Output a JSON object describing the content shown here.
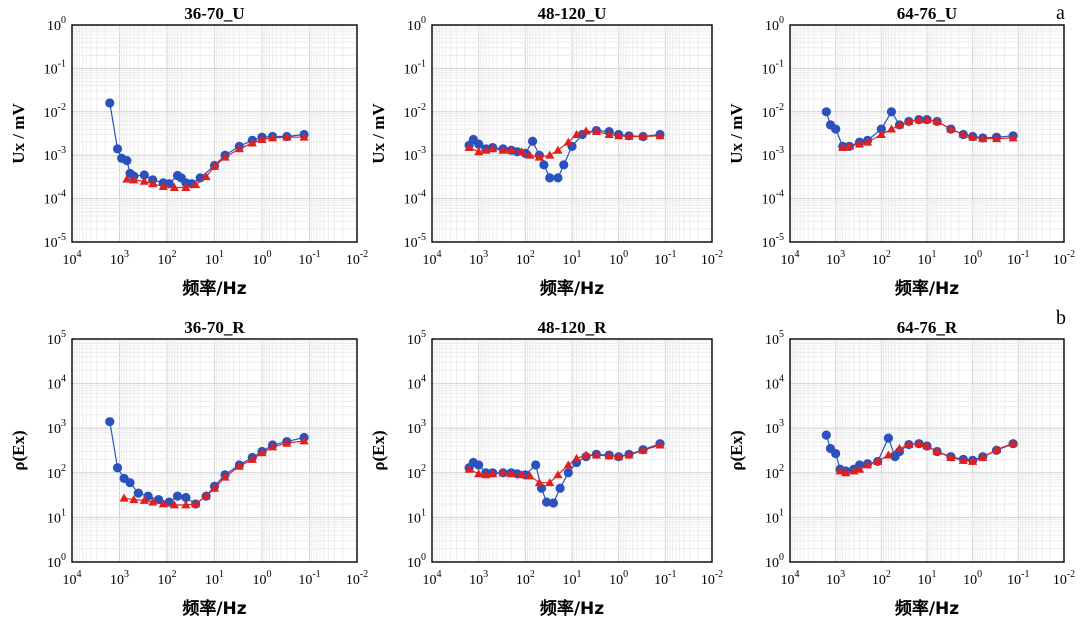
{
  "panel_labels": [
    "a",
    "b"
  ],
  "chart_data": [
    {
      "type": "line",
      "title": "36-70_U",
      "xlabel": "频率/Hz",
      "ylabel": "Ux / mV",
      "x_scale": "log",
      "x_reversed": true,
      "xlim": [
        10000,
        0.01
      ],
      "y_scale": "log",
      "ylim": [
        1e-05,
        1
      ],
      "x_ticks": [
        "10^4",
        "10^3",
        "10^2",
        "10^1",
        "10^0",
        "10^-1",
        "10^-2"
      ],
      "y_ticks": [
        "10^-5",
        "10^-4",
        "10^-3",
        "10^-2",
        "10^-1",
        "10^0"
      ],
      "grid": true,
      "series": [
        {
          "color": "#2a52be",
          "marker": "circle",
          "x": [
            1600,
            1100,
            900,
            700,
            600,
            500,
            300,
            200,
            120,
            90,
            60,
            50,
            40,
            30,
            20,
            10,
            6,
            3,
            1.6,
            1,
            0.6,
            0.3,
            0.13
          ],
          "y": [
            0.016,
            0.0014,
            0.00085,
            0.00075,
            0.00038,
            0.00033,
            0.00035,
            0.00027,
            0.00023,
            0.00022,
            0.00034,
            0.0003,
            0.00023,
            0.00022,
            0.0003,
            0.00058,
            0.001,
            0.0016,
            0.0022,
            0.0026,
            0.0027,
            0.0027,
            0.003
          ]
        },
        {
          "color": "#e0201e",
          "marker": "triangle",
          "x": [
            700,
            500,
            300,
            200,
            120,
            70,
            40,
            25,
            15,
            10,
            6,
            3,
            1.6,
            1,
            0.6,
            0.3,
            0.13
          ],
          "y": [
            0.00028,
            0.00027,
            0.00025,
            0.00022,
            0.00019,
            0.00018,
            0.00018,
            0.00021,
            0.00032,
            0.00055,
            0.0009,
            0.0014,
            0.0019,
            0.0023,
            0.0025,
            0.0026,
            0.0026
          ]
        }
      ]
    },
    {
      "type": "line",
      "title": "48-120_U",
      "xlabel": "频率/Hz",
      "ylabel": "Ux / mV",
      "x_scale": "log",
      "x_reversed": true,
      "xlim": [
        10000,
        0.01
      ],
      "y_scale": "log",
      "ylim": [
        1e-05,
        1
      ],
      "x_ticks": [
        "10^4",
        "10^3",
        "10^2",
        "10^1",
        "10^0",
        "10^-1",
        "10^-2"
      ],
      "y_ticks": [
        "10^-5",
        "10^-4",
        "10^-3",
        "10^-2",
        "10^-1",
        "10^0"
      ],
      "grid": true,
      "series": [
        {
          "color": "#2a52be",
          "marker": "circle",
          "x": [
            1600,
            1300,
            1000,
            700,
            500,
            300,
            200,
            150,
            100,
            70,
            50,
            40,
            30,
            20,
            15,
            10,
            6,
            3,
            1.6,
            1,
            0.6,
            0.3,
            0.13
          ],
          "y": [
            0.0017,
            0.0023,
            0.0018,
            0.0014,
            0.0015,
            0.0014,
            0.0013,
            0.0012,
            0.0011,
            0.0021,
            0.001,
            0.0006,
            0.0003,
            0.0003,
            0.0006,
            0.0016,
            0.003,
            0.0037,
            0.0035,
            0.003,
            0.0028,
            0.0027,
            0.003
          ]
        },
        {
          "color": "#e0201e",
          "marker": "triangle",
          "x": [
            1600,
            1000,
            700,
            500,
            300,
            200,
            120,
            80,
            50,
            30,
            20,
            12,
            8,
            5,
            3,
            1.6,
            1,
            0.6,
            0.3,
            0.13
          ],
          "y": [
            0.0015,
            0.0012,
            0.0013,
            0.0014,
            0.0013,
            0.0013,
            0.0012,
            0.001,
            0.0009,
            0.001,
            0.0013,
            0.002,
            0.003,
            0.0036,
            0.0035,
            0.003,
            0.0028,
            0.0027,
            0.0027,
            0.0028
          ]
        }
      ]
    },
    {
      "type": "line",
      "title": "64-76_U",
      "xlabel": "频率/Hz",
      "ylabel": "Ux / mV",
      "x_scale": "log",
      "x_reversed": true,
      "xlim": [
        10000,
        0.01
      ],
      "y_scale": "log",
      "ylim": [
        1e-05,
        1
      ],
      "x_ticks": [
        "10^4",
        "10^3",
        "10^2",
        "10^1",
        "10^0",
        "10^-1",
        "10^-2"
      ],
      "y_ticks": [
        "10^-5",
        "10^-4",
        "10^-3",
        "10^-2",
        "10^-1",
        "10^0"
      ],
      "grid": true,
      "series": [
        {
          "color": "#2a52be",
          "marker": "circle",
          "x": [
            1600,
            1300,
            1000,
            700,
            500,
            300,
            200,
            100,
            60,
            40,
            25,
            15,
            10,
            6,
            3,
            1.6,
            1,
            0.6,
            0.3,
            0.13
          ],
          "y": [
            0.01,
            0.005,
            0.004,
            0.0016,
            0.0016,
            0.002,
            0.0022,
            0.004,
            0.01,
            0.005,
            0.006,
            0.0066,
            0.0066,
            0.006,
            0.004,
            0.003,
            0.0027,
            0.0025,
            0.0026,
            0.0028
          ]
        },
        {
          "color": "#e0201e",
          "marker": "triangle",
          "x": [
            700,
            500,
            300,
            200,
            100,
            60,
            40,
            25,
            15,
            10,
            6,
            3,
            1.6,
            1,
            0.6,
            0.3,
            0.13
          ],
          "y": [
            0.0015,
            0.0016,
            0.0018,
            0.002,
            0.003,
            0.004,
            0.005,
            0.006,
            0.0066,
            0.0066,
            0.006,
            0.004,
            0.003,
            0.0026,
            0.0024,
            0.0024,
            0.0025
          ]
        }
      ]
    },
    {
      "type": "line",
      "title": "36-70_R",
      "xlabel": "频率/Hz",
      "ylabel": "ρ(Ex)",
      "x_scale": "log",
      "x_reversed": true,
      "xlim": [
        10000,
        0.01
      ],
      "y_scale": "log",
      "ylim": [
        1,
        100000
      ],
      "x_ticks": [
        "10^4",
        "10^3",
        "10^2",
        "10^1",
        "10^0",
        "10^-1",
        "10^-2"
      ],
      "y_ticks": [
        "10^0",
        "10^1",
        "10^2",
        "10^3",
        "10^4",
        "10^5"
      ],
      "grid": true,
      "series": [
        {
          "color": "#2a52be",
          "marker": "circle",
          "x": [
            1600,
            1100,
            800,
            600,
            400,
            250,
            150,
            90,
            60,
            40,
            25,
            15,
            10,
            6,
            3,
            1.6,
            1,
            0.6,
            0.3,
            0.13
          ],
          "y": [
            1400,
            130,
            75,
            60,
            35,
            30,
            25,
            22,
            30,
            28,
            20,
            30,
            50,
            90,
            150,
            220,
            300,
            420,
            500,
            620
          ]
        },
        {
          "color": "#e0201e",
          "marker": "triangle",
          "x": [
            800,
            500,
            300,
            200,
            120,
            70,
            40,
            25,
            15,
            10,
            6,
            3,
            1.6,
            1,
            0.6,
            0.3,
            0.13
          ],
          "y": [
            27,
            25,
            24,
            22,
            20,
            19,
            19,
            20,
            30,
            45,
            80,
            140,
            200,
            280,
            380,
            460,
            520
          ]
        }
      ]
    },
    {
      "type": "line",
      "title": "48-120_R",
      "xlabel": "频率/Hz",
      "ylabel": "ρ(Ex)",
      "x_scale": "log",
      "x_reversed": true,
      "xlim": [
        10000,
        0.01
      ],
      "y_scale": "log",
      "ylim": [
        1,
        100000
      ],
      "x_ticks": [
        "10^4",
        "10^3",
        "10^2",
        "10^1",
        "10^0",
        "10^-1",
        "10^-2"
      ],
      "y_ticks": [
        "10^0",
        "10^1",
        "10^2",
        "10^3",
        "10^4",
        "10^5"
      ],
      "grid": true,
      "series": [
        {
          "color": "#2a52be",
          "marker": "circle",
          "x": [
            1600,
            1300,
            1000,
            700,
            500,
            300,
            200,
            150,
            100,
            60,
            45,
            35,
            25,
            18,
            12,
            8,
            5,
            3,
            1.6,
            1,
            0.6,
            0.3,
            0.13
          ],
          "y": [
            130,
            170,
            150,
            100,
            100,
            100,
            100,
            95,
            90,
            150,
            45,
            22,
            21,
            45,
            100,
            170,
            230,
            260,
            250,
            230,
            260,
            330,
            450
          ]
        },
        {
          "color": "#e0201e",
          "marker": "triangle",
          "x": [
            1600,
            1000,
            700,
            500,
            300,
            200,
            120,
            80,
            50,
            30,
            20,
            12,
            8,
            5,
            3,
            1.6,
            1,
            0.6,
            0.3,
            0.13
          ],
          "y": [
            120,
            95,
            90,
            95,
            100,
            95,
            90,
            85,
            60,
            60,
            90,
            150,
            210,
            250,
            250,
            240,
            230,
            250,
            320,
            420
          ]
        }
      ]
    },
    {
      "type": "line",
      "title": "64-76_R",
      "xlabel": "频率/Hz",
      "ylabel": "ρ(Ex)",
      "x_scale": "log",
      "x_reversed": true,
      "xlim": [
        10000,
        0.01
      ],
      "y_scale": "log",
      "ylim": [
        1,
        100000
      ],
      "x_ticks": [
        "10^4",
        "10^3",
        "10^2",
        "10^1",
        "10^0",
        "10^-1",
        "10^-2"
      ],
      "y_ticks": [
        "10^0",
        "10^1",
        "10^2",
        "10^3",
        "10^4",
        "10^5"
      ],
      "grid": true,
      "series": [
        {
          "color": "#2a52be",
          "marker": "circle",
          "x": [
            1600,
            1300,
            1000,
            800,
            600,
            400,
            300,
            200,
            120,
            70,
            50,
            40,
            25,
            15,
            10,
            6,
            3,
            1.6,
            1,
            0.6,
            0.3,
            0.13
          ],
          "y": [
            700,
            350,
            270,
            120,
            110,
            120,
            150,
            160,
            180,
            600,
            230,
            300,
            430,
            450,
            400,
            300,
            230,
            200,
            190,
            230,
            320,
            450
          ]
        },
        {
          "color": "#e0201e",
          "marker": "triangle",
          "x": [
            800,
            600,
            400,
            300,
            200,
            120,
            70,
            40,
            25,
            15,
            10,
            6,
            3,
            1.6,
            1,
            0.6,
            0.3,
            0.13
          ],
          "y": [
            110,
            100,
            110,
            120,
            150,
            180,
            250,
            350,
            430,
            450,
            400,
            300,
            220,
            190,
            180,
            220,
            330,
            460
          ]
        }
      ]
    }
  ]
}
